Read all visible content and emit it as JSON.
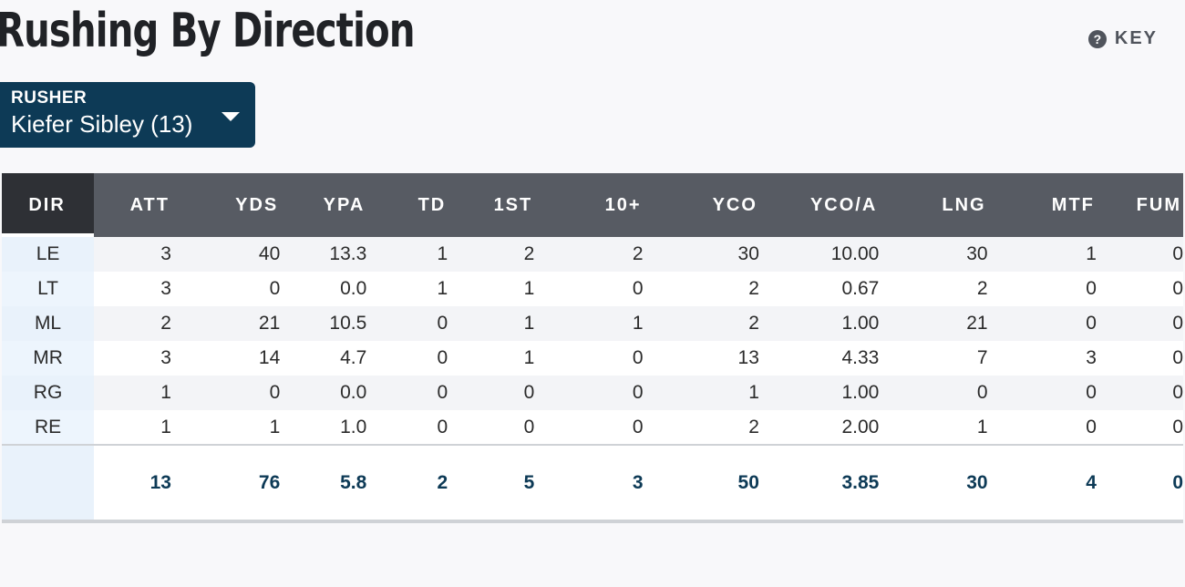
{
  "header": {
    "title": "Rushing By Direction",
    "key_label": "KEY",
    "key_icon": "question-circle-icon"
  },
  "rusher": {
    "label": "RUSHER",
    "value": "Kiefer Sibley (13)"
  },
  "table": {
    "columns": [
      "DIR",
      "ATT",
      "YDS",
      "YPA",
      "TD",
      "1ST",
      "10+",
      "YCO",
      "YCO/A",
      "LNG",
      "MTF",
      "FUM"
    ],
    "rows": [
      [
        "LE",
        "3",
        "40",
        "13.3",
        "1",
        "2",
        "2",
        "30",
        "10.00",
        "30",
        "1",
        "0"
      ],
      [
        "LT",
        "3",
        "0",
        "0.0",
        "1",
        "1",
        "0",
        "2",
        "0.67",
        "2",
        "0",
        "0"
      ],
      [
        "ML",
        "2",
        "21",
        "10.5",
        "0",
        "1",
        "1",
        "2",
        "1.00",
        "21",
        "0",
        "0"
      ],
      [
        "MR",
        "3",
        "14",
        "4.7",
        "0",
        "1",
        "0",
        "13",
        "4.33",
        "7",
        "3",
        "0"
      ],
      [
        "RG",
        "1",
        "0",
        "0.0",
        "0",
        "0",
        "0",
        "1",
        "1.00",
        "0",
        "0",
        "0"
      ],
      [
        "RE",
        "1",
        "1",
        "1.0",
        "0",
        "0",
        "0",
        "2",
        "2.00",
        "1",
        "0",
        "0"
      ]
    ],
    "totals": [
      "",
      "13",
      "76",
      "5.8",
      "2",
      "5",
      "3",
      "50",
      "3.85",
      "30",
      "4",
      "0"
    ]
  },
  "colors": {
    "accent": "#0d3a56",
    "header_bg": "#575b63",
    "dir_header_bg": "#2e3035"
  }
}
